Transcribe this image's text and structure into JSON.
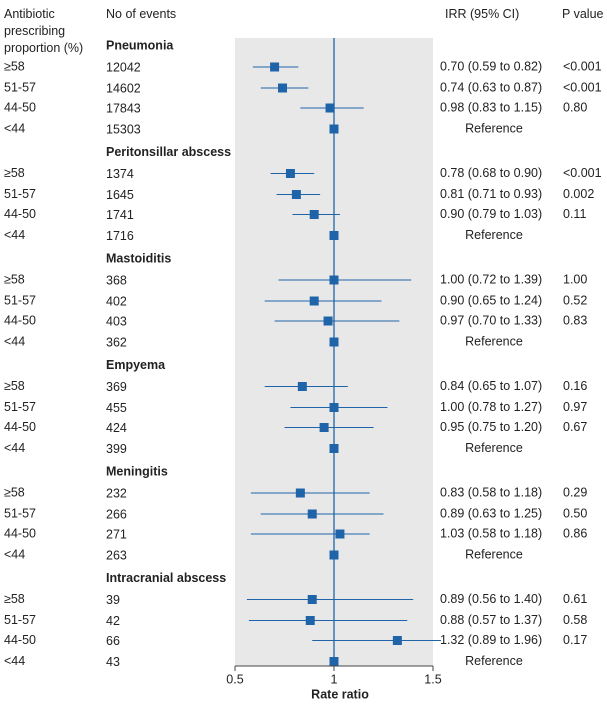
{
  "headers": {
    "prop_line1": "Antibiotic",
    "prop_line2": "prescribing",
    "prop_line3": "proportion (%)",
    "events": "No of events",
    "irr": "IRR (95% CI)",
    "pvalue": "P value"
  },
  "chart_data": {
    "type": "forest",
    "xlabel": "Rate ratio",
    "xlim": [
      0.5,
      1.5
    ],
    "xticks": [
      "0.5",
      "1",
      "1.5"
    ],
    "reference_line": 1,
    "groups": [
      {
        "name": "Pneumonia",
        "rows": [
          {
            "prop": "≥58",
            "events": "12042",
            "irr": 0.7,
            "lo": 0.59,
            "hi": 0.82,
            "ci_text": "0.70 (0.59 to 0.82)",
            "p": "<0.001"
          },
          {
            "prop": "51-57",
            "events": "14602",
            "irr": 0.74,
            "lo": 0.63,
            "hi": 0.87,
            "ci_text": "0.74 (0.63 to 0.87)",
            "p": "<0.001"
          },
          {
            "prop": "44-50",
            "events": "17843",
            "irr": 0.98,
            "lo": 0.83,
            "hi": 1.15,
            "ci_text": "0.98 (0.83 to 1.15)",
            "p": "0.80"
          },
          {
            "prop": "<44",
            "events": "15303",
            "irr": 1,
            "lo": null,
            "hi": null,
            "ci_text": "Reference",
            "p": ""
          }
        ]
      },
      {
        "name": "Peritonsillar abscess",
        "rows": [
          {
            "prop": "≥58",
            "events": "1374",
            "irr": 0.78,
            "lo": 0.68,
            "hi": 0.9,
            "ci_text": "0.78 (0.68 to 0.90)",
            "p": "<0.001"
          },
          {
            "prop": "51-57",
            "events": "1645",
            "irr": 0.81,
            "lo": 0.71,
            "hi": 0.93,
            "ci_text": "0.81 (0.71 to 0.93)",
            "p": "0.002"
          },
          {
            "prop": "44-50",
            "events": "1741",
            "irr": 0.9,
            "lo": 0.79,
            "hi": 1.03,
            "ci_text": "0.90 (0.79 to 1.03)",
            "p": "0.11"
          },
          {
            "prop": "<44",
            "events": "1716",
            "irr": 1,
            "lo": null,
            "hi": null,
            "ci_text": "Reference",
            "p": ""
          }
        ]
      },
      {
        "name": "Mastoiditis",
        "rows": [
          {
            "prop": "≥58",
            "events": "368",
            "irr": 1.0,
            "lo": 0.72,
            "hi": 1.39,
            "ci_text": "1.00 (0.72 to 1.39)",
            "p": "1.00"
          },
          {
            "prop": "51-57",
            "events": "402",
            "irr": 0.9,
            "lo": 0.65,
            "hi": 1.24,
            "ci_text": "0.90 (0.65 to 1.24)",
            "p": "0.52"
          },
          {
            "prop": "44-50",
            "events": "403",
            "irr": 0.97,
            "lo": 0.7,
            "hi": 1.33,
            "ci_text": "0.97 (0.70 to 1.33)",
            "p": "0.83"
          },
          {
            "prop": "<44",
            "events": "362",
            "irr": 1,
            "lo": null,
            "hi": null,
            "ci_text": "Reference",
            "p": ""
          }
        ]
      },
      {
        "name": "Empyema",
        "rows": [
          {
            "prop": "≥58",
            "events": "369",
            "irr": 0.84,
            "lo": 0.65,
            "hi": 1.07,
            "ci_text": "0.84 (0.65 to 1.07)",
            "p": "0.16"
          },
          {
            "prop": "51-57",
            "events": "455",
            "irr": 1.0,
            "lo": 0.78,
            "hi": 1.27,
            "ci_text": "1.00 (0.78 to 1.27)",
            "p": "0.97"
          },
          {
            "prop": "44-50",
            "events": "424",
            "irr": 0.95,
            "lo": 0.75,
            "hi": 1.2,
            "ci_text": "0.95 (0.75 to 1.20)",
            "p": "0.67"
          },
          {
            "prop": "<44",
            "events": "399",
            "irr": 1,
            "lo": null,
            "hi": null,
            "ci_text": "Reference",
            "p": ""
          }
        ]
      },
      {
        "name": "Meningitis",
        "rows": [
          {
            "prop": "≥58",
            "events": "232",
            "irr": 0.83,
            "lo": 0.58,
            "hi": 1.18,
            "ci_text": "0.83 (0.58 to 1.18)",
            "p": "0.29"
          },
          {
            "prop": "51-57",
            "events": "266",
            "irr": 0.89,
            "lo": 0.63,
            "hi": 1.25,
            "ci_text": "0.89 (0.63 to 1.25)",
            "p": "0.50"
          },
          {
            "prop": "44-50",
            "events": "271",
            "irr": 1.03,
            "lo": 0.58,
            "hi": 1.18,
            "ci_text": "1.03 (0.58 to 1.18)",
            "p": "0.86"
          },
          {
            "prop": "<44",
            "events": "263",
            "irr": 1,
            "lo": null,
            "hi": null,
            "ci_text": "Reference",
            "p": ""
          }
        ]
      },
      {
        "name": "Intracranial abscess",
        "rows": [
          {
            "prop": "≥58",
            "events": "39",
            "irr": 0.89,
            "lo": 0.56,
            "hi": 1.4,
            "ci_text": "0.89 (0.56 to 1.40)",
            "p": "0.61"
          },
          {
            "prop": "51-57",
            "events": "42",
            "irr": 0.88,
            "lo": 0.57,
            "hi": 1.37,
            "ci_text": "0.88 (0.57 to 1.37)",
            "p": "0.58"
          },
          {
            "prop": "44-50",
            "events": "66",
            "irr": 1.32,
            "lo": 0.89,
            "hi": 1.96,
            "ci_text": "1.32 (0.89 to 1.96)",
            "p": "0.17"
          },
          {
            "prop": "<44",
            "events": "43",
            "irr": 1,
            "lo": null,
            "hi": null,
            "ci_text": "Reference",
            "p": ""
          }
        ]
      }
    ]
  },
  "colors": {
    "marker": "#1f64a8",
    "line": "#1f64a8",
    "panel": "#e8e8e8",
    "text": "#222222"
  }
}
